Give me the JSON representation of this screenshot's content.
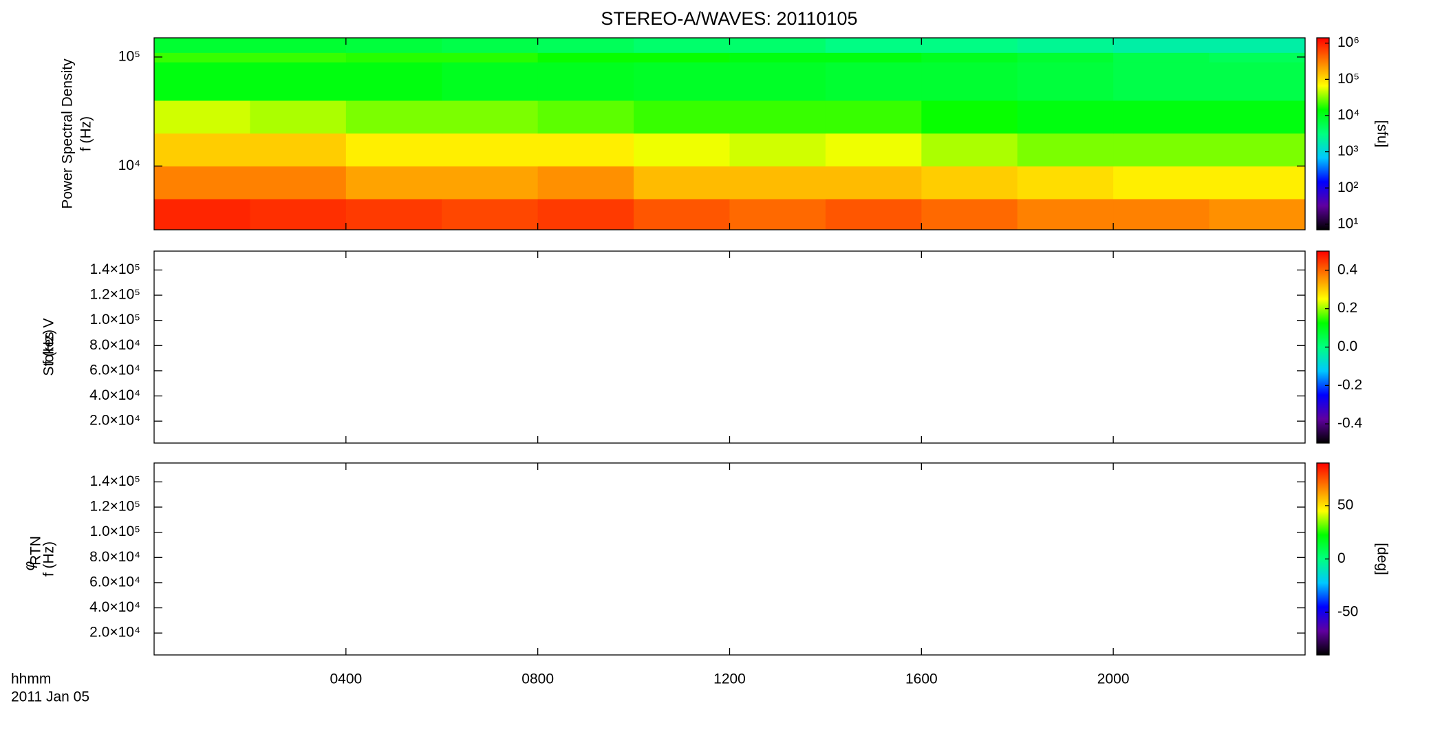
{
  "title": "STEREO-A/WAVES: 20110105",
  "time_label": "hhmm",
  "date_label": "2011 Jan 05",
  "colormap": [
    "#000000",
    "#6000a0",
    "#0000ff",
    "#00c8ff",
    "#00ff80",
    "#00ff00",
    "#ffff00",
    "#ff8000",
    "#ff0000"
  ],
  "chart_data": [
    {
      "type": "heatmap",
      "y_label": [
        "Power Spectral Density",
        "f (Hz)"
      ],
      "xlim": [
        0,
        24
      ],
      "xticks": [
        {
          "value": 4,
          "label": "0400"
        },
        {
          "value": 8,
          "label": "0800"
        },
        {
          "value": 12,
          "label": "1200"
        },
        {
          "value": 16,
          "label": "1600"
        },
        {
          "value": 20,
          "label": "2000"
        }
      ],
      "ylim": [
        2600,
        150000
      ],
      "y_log": true,
      "yticks": [
        {
          "value": 10000,
          "label": "10⁴"
        },
        {
          "value": 100000,
          "label": "10⁵"
        }
      ],
      "x_edges": [
        0,
        2,
        4,
        6,
        8,
        10,
        12,
        14,
        16,
        18,
        20,
        22,
        24
      ],
      "y_edges": [
        2600,
        5000,
        10000,
        20000,
        40000,
        90000,
        110000,
        150000
      ],
      "z": [
        [
          900000,
          800000,
          700000,
          600000,
          700000,
          500000,
          400000,
          500000,
          400000,
          300000,
          300000,
          250000
        ],
        [
          300000,
          300000,
          200000,
          200000,
          250000,
          150000,
          150000,
          150000,
          120000,
          100000,
          80000,
          80000
        ],
        [
          120000,
          120000,
          80000,
          80000,
          80000,
          60000,
          50000,
          60000,
          40000,
          30000,
          30000,
          30000
        ],
        [
          50000,
          40000,
          30000,
          30000,
          25000,
          20000,
          20000,
          20000,
          15000,
          12000,
          12000,
          12000
        ],
        [
          12000,
          12000,
          12000,
          10000,
          10000,
          9000,
          9000,
          8000,
          8000,
          7000,
          6000,
          6000
        ],
        [
          20000,
          20000,
          18000,
          18000,
          15000,
          15000,
          12000,
          12000,
          10000,
          8000,
          6000,
          5000
        ],
        [
          8000,
          8000,
          7000,
          6000,
          5000,
          4000,
          4000,
          3000,
          3000,
          2500,
          2000,
          2000
        ]
      ],
      "colorbar": {
        "label": "[sfu]",
        "log": true,
        "lim": [
          7,
          1400000
        ],
        "ticks": [
          {
            "value": 10,
            "label": "10¹"
          },
          {
            "value": 100,
            "label": "10²"
          },
          {
            "value": 1000,
            "label": "10³"
          },
          {
            "value": 10000,
            "label": "10⁴"
          },
          {
            "value": 100000,
            "label": "10⁵"
          },
          {
            "value": 1000000,
            "label": "10⁶"
          }
        ]
      }
    },
    {
      "type": "heatmap",
      "y_label": [
        "Stokes V",
        "f (Hz)"
      ],
      "xlim": [
        0,
        24
      ],
      "xticks": [
        {
          "value": 4,
          "label": "0400"
        },
        {
          "value": 8,
          "label": "0800"
        },
        {
          "value": 12,
          "label": "1200"
        },
        {
          "value": 16,
          "label": "1600"
        },
        {
          "value": 20,
          "label": "2000"
        }
      ],
      "ylim": [
        2600,
        155000
      ],
      "y_log": false,
      "yticks": [
        {
          "value": 20000,
          "label": "2.0×10⁴"
        },
        {
          "value": 40000,
          "label": "4.0×10⁴"
        },
        {
          "value": 60000,
          "label": "6.0×10⁴"
        },
        {
          "value": 80000,
          "label": "8.0×10⁴"
        },
        {
          "value": 100000,
          "label": "1.0×10⁵"
        },
        {
          "value": 120000,
          "label": "1.2×10⁵"
        },
        {
          "value": 140000,
          "label": "1.4×10⁵"
        }
      ],
      "colorbar": {
        "log": false,
        "lim": [
          -0.5,
          0.5
        ],
        "ticks": [
          -0.4,
          -0.2,
          {
            "value": 0,
            "label": "0.0"
          },
          0.2,
          0.4
        ]
      }
    },
    {
      "type": "heatmap",
      "y_symbol": "φ",
      "y_symbol_sub": "RTN",
      "y_label": [
        "f (Hz)"
      ],
      "xlim": [
        0,
        24
      ],
      "xticks": [
        {
          "value": 4,
          "label": "0400"
        },
        {
          "value": 8,
          "label": "0800"
        },
        {
          "value": 12,
          "label": "1200"
        },
        {
          "value": 16,
          "label": "1600"
        },
        {
          "value": 20,
          "label": "2000"
        }
      ],
      "ylim": [
        2600,
        155000
      ],
      "y_log": false,
      "yticks": [
        {
          "value": 20000,
          "label": "2.0×10⁴"
        },
        {
          "value": 40000,
          "label": "4.0×10⁴"
        },
        {
          "value": 60000,
          "label": "6.0×10⁴"
        },
        {
          "value": 80000,
          "label": "8.0×10⁴"
        },
        {
          "value": 100000,
          "label": "1.0×10⁵"
        },
        {
          "value": 120000,
          "label": "1.2×10⁵"
        },
        {
          "value": 140000,
          "label": "1.4×10⁵"
        }
      ],
      "colorbar": {
        "label": "[deg]",
        "log": false,
        "lim": [
          -90,
          90
        ],
        "ticks": [
          -50,
          0,
          50
        ]
      }
    }
  ]
}
